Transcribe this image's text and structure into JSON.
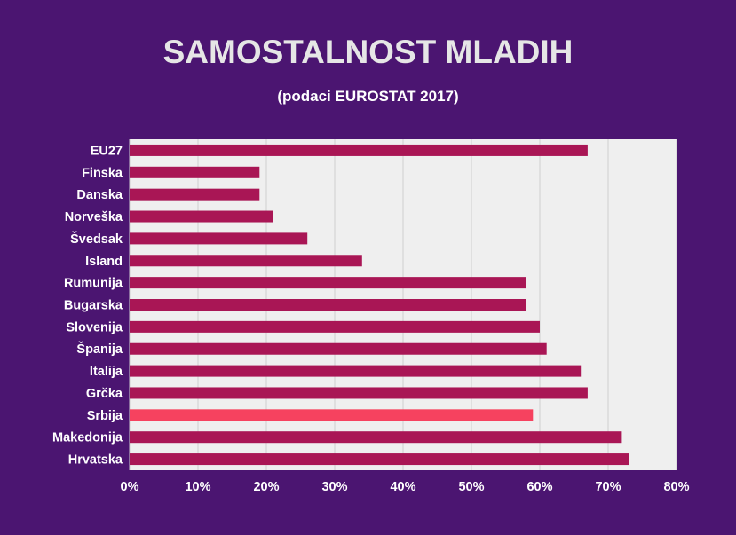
{
  "chart_data": {
    "type": "bar",
    "orientation": "horizontal",
    "title": "SAMOSTALNOST MLADIH",
    "subtitle": "(podaci EUROSTAT 2017)",
    "categories": [
      "EU27",
      "Finska",
      "Danska",
      "Norveška",
      "Švedsak",
      "Island",
      "Rumunija",
      "Bugarska",
      "Slovenija",
      "Španija",
      "Italija",
      "Grčka",
      "Srbija",
      "Makedonija",
      "Hrvatska"
    ],
    "values": [
      0.67,
      0.19,
      0.19,
      0.21,
      0.26,
      0.34,
      0.58,
      0.58,
      0.6,
      0.61,
      0.66,
      0.67,
      0.59,
      0.72,
      0.73
    ],
    "xlim": [
      0,
      0.8
    ],
    "xticks": [
      0,
      0.1,
      0.2,
      0.3,
      0.4,
      0.5,
      0.6,
      0.7,
      0.8
    ],
    "xtick_labels": [
      "0%",
      "10%",
      "20%",
      "30%",
      "40%",
      "50%",
      "60%",
      "70%",
      "80%"
    ],
    "highlight_category": "Srbija",
    "grid": true,
    "colors": {
      "background": "#4b1571",
      "plot_background": "#efefef",
      "bar": "#a91655",
      "highlight": "#f6425f",
      "gridline": "#cfcfcf"
    }
  }
}
